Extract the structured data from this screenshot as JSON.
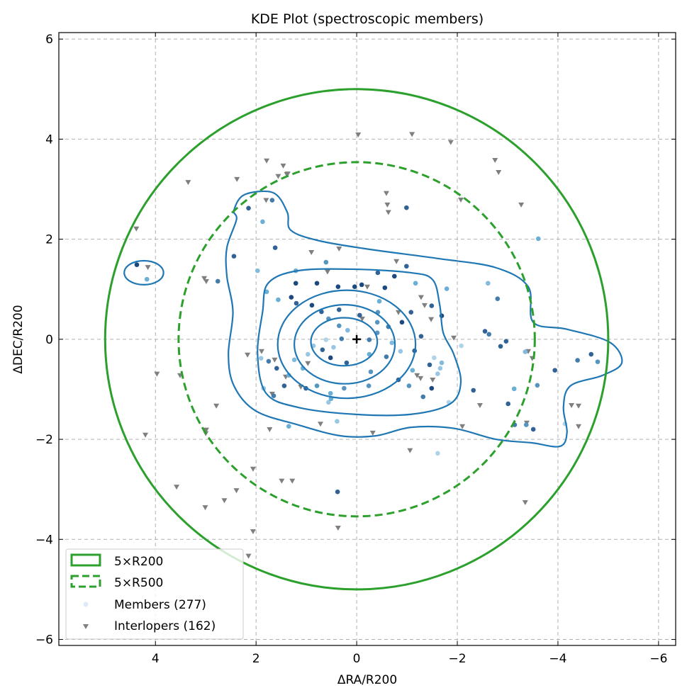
{
  "chart_data": {
    "type": "scatter",
    "title": "KDE Plot (spectroscopic members)",
    "xlabel": "ΔRA/R200",
    "ylabel": "ΔDEC/R200",
    "xlim": [
      5.92,
      -6.34
    ],
    "ylim": [
      -6.12,
      6.13
    ],
    "xticks": [
      4,
      2,
      0,
      -2,
      -4,
      -6
    ],
    "xtick_labels": [
      "4",
      "2",
      "0",
      "−2",
      "−4",
      "−6"
    ],
    "yticks": [
      -6,
      -4,
      -2,
      0,
      2,
      4,
      6
    ],
    "ytick_labels": [
      "−6",
      "−4",
      "−2",
      "0",
      "2",
      "4",
      "6"
    ],
    "grid": true,
    "legend_position": "bottom-left",
    "colors": {
      "circle": "#2ca02c",
      "contour": "#1f77b4",
      "interloper": "#7f7f7f",
      "blue_light": "#deebf7",
      "blue_mid": "#6baed6",
      "blue_dark": "#08306b"
    },
    "circles": [
      {
        "label": "5×R200",
        "radius": 5.0,
        "style": "solid"
      },
      {
        "label": "5×R500",
        "radius": 3.54,
        "style": "dashed"
      }
    ],
    "legend": [
      {
        "label": "5×R200",
        "kind": "solid-patch"
      },
      {
        "label": "5×R500",
        "kind": "dashed-patch"
      },
      {
        "label": "Members (277)",
        "kind": "dot"
      },
      {
        "label": "Interlopers (162)",
        "kind": "triangle"
      }
    ],
    "center_marker": [
      0,
      0
    ],
    "contours": {
      "ellipses": [
        {
          "cx": 0.25,
          "cy": -0.05,
          "rx": 0.66,
          "ry": 0.48
        },
        {
          "cx": 0.24,
          "cy": -0.1,
          "rx": 1.0,
          "ry": 0.79
        },
        {
          "cx": 0.2,
          "cy": -0.1,
          "rx": 1.37,
          "ry": 1.08
        },
        {
          "cx": 4.23,
          "cy": 1.33,
          "rx": 0.39,
          "ry": 0.24
        }
      ],
      "paths": [
        [
          [
            1.76,
            1.12
          ],
          [
            1.17,
            1.37
          ],
          [
            0.04,
            1.4
          ],
          [
            -1.08,
            1.33
          ],
          [
            -1.51,
            1.19
          ],
          [
            -1.65,
            0.69
          ],
          [
            -1.72,
            0.13
          ],
          [
            -1.93,
            -0.3
          ],
          [
            -2.07,
            -0.86
          ],
          [
            -1.86,
            -1.29
          ],
          [
            -1.08,
            -1.5
          ],
          [
            0.04,
            -1.5
          ],
          [
            1.17,
            -1.36
          ],
          [
            1.8,
            -1.08
          ],
          [
            1.97,
            -0.3
          ],
          [
            1.87,
            0.55
          ]
        ],
        [
          [
            2.44,
            2.58
          ],
          [
            2.23,
            2.89
          ],
          [
            1.66,
            2.93
          ],
          [
            1.38,
            2.54
          ],
          [
            1.31,
            2.18
          ],
          [
            0.75,
            1.97
          ],
          [
            -0.24,
            1.8
          ],
          [
            -1.65,
            1.61
          ],
          [
            -2.77,
            1.43
          ],
          [
            -3.41,
            1.05
          ],
          [
            -3.51,
            0.34
          ],
          [
            -4.18,
            0.2
          ],
          [
            -5.03,
            -0.06
          ],
          [
            -5.27,
            -0.47
          ],
          [
            -4.89,
            -0.72
          ],
          [
            -4.25,
            -0.93
          ],
          [
            -4.11,
            -1.36
          ],
          [
            -4.18,
            -1.86
          ],
          [
            -4.04,
            -2.14
          ],
          [
            -3.48,
            -2.07
          ],
          [
            -2.77,
            -2.0
          ],
          [
            -1.93,
            -1.78
          ],
          [
            -1.08,
            -1.76
          ],
          [
            -0.38,
            -1.93
          ],
          [
            0.32,
            -1.93
          ],
          [
            1.17,
            -1.71
          ],
          [
            2.01,
            -1.43
          ],
          [
            2.44,
            -0.93
          ],
          [
            2.55,
            -0.3
          ],
          [
            2.46,
            0.55
          ],
          [
            2.58,
            1.26
          ],
          [
            2.58,
            1.83
          ],
          [
            2.39,
            2.39
          ]
        ]
      ]
    },
    "members": [
      [
        4.37,
        1.49,
        0.9
      ],
      [
        4.17,
        1.2,
        0.5
      ],
      [
        2.15,
        2.62,
        0.8
      ],
      [
        1.68,
        2.78,
        0.7
      ],
      [
        1.87,
        2.35,
        0.5
      ],
      [
        1.62,
        1.83,
        0.8
      ],
      [
        2.44,
        1.66,
        0.8
      ],
      [
        2.76,
        1.16,
        0.7
      ],
      [
        1.97,
        1.37,
        0.4
      ],
      [
        -0.99,
        2.63,
        0.8
      ],
      [
        -3.61,
        2.01,
        0.5
      ],
      [
        -2.61,
        1.12,
        0.4
      ],
      [
        -2.8,
        0.81,
        0.7
      ],
      [
        -2.55,
        0.16,
        0.8
      ],
      [
        -2.63,
        0.1,
        0.7
      ],
      [
        -2.97,
        -0.04,
        0.8
      ],
      [
        -2.86,
        -0.14,
        0.8
      ],
      [
        -3.35,
        -0.25,
        0.4
      ],
      [
        -3.94,
        -0.62,
        0.8
      ],
      [
        -4.39,
        -0.42,
        0.7
      ],
      [
        -4.66,
        -0.3,
        0.8
      ],
      [
        -4.79,
        -0.45,
        0.6
      ],
      [
        -3.59,
        -0.92,
        0.6
      ],
      [
        -2.32,
        -1.02,
        0.8
      ],
      [
        -3.01,
        -1.29,
        0.8
      ],
      [
        -3.13,
        -0.99,
        0.5
      ],
      [
        -3.14,
        -1.71,
        0.7
      ],
      [
        -3.37,
        -1.71,
        0.6
      ],
      [
        -3.51,
        -1.8,
        0.8
      ],
      [
        -4.14,
        -1.69,
        0.2
      ],
      [
        -2.08,
        -0.13,
        0.2
      ],
      [
        -1.61,
        -2.28,
        0.2
      ],
      [
        0.38,
        -3.05,
        0.8
      ],
      [
        1.35,
        -1.74,
        0.5
      ],
      [
        0.39,
        -1.64,
        0.3
      ],
      [
        -1.83,
        -1.26,
        0.2
      ],
      [
        -1.79,
        1.01,
        0.5
      ],
      [
        -1.17,
        1.12,
        0.5
      ],
      [
        -0.99,
        1.46,
        0.8
      ],
      [
        -0.75,
        1.26,
        0.9
      ],
      [
        -0.42,
        1.33,
        0.8
      ],
      [
        -0.56,
        1.03,
        0.9
      ],
      [
        0.61,
        1.54,
        0.6
      ],
      [
        1.21,
        1.37,
        0.5
      ],
      [
        1.21,
        1.12,
        0.9
      ],
      [
        0.79,
        1.12,
        0.9
      ],
      [
        0.37,
        1.05,
        0.9
      ],
      [
        0.04,
        1.05,
        0.9
      ],
      [
        -0.1,
        1.09,
        0.9
      ],
      [
        1.79,
        0.95,
        0.5
      ],
      [
        1.56,
        0.79,
        0.5
      ],
      [
        1.3,
        0.84,
        0.9
      ],
      [
        1.2,
        0.72,
        0.8
      ],
      [
        0.89,
        0.68,
        0.9
      ],
      [
        0.7,
        0.55,
        0.8
      ],
      [
        0.35,
        0.59,
        0.8
      ],
      [
        0.56,
        0.41,
        0.6
      ],
      [
        -0.06,
        0.48,
        0.8
      ],
      [
        -0.41,
        0.34,
        0.6
      ],
      [
        -0.41,
        0.13,
        0.6
      ],
      [
        -0.25,
        -0.01,
        0.7
      ],
      [
        0.35,
        0.27,
        0.6
      ],
      [
        0.18,
        0.18,
        0.4
      ],
      [
        0.3,
        0.01,
        0.7
      ],
      [
        0.46,
        -0.16,
        0.3
      ],
      [
        0.61,
        -0.01,
        0.2
      ],
      [
        0.68,
        -0.21,
        0.8
      ],
      [
        0.52,
        -0.37,
        0.9
      ],
      [
        0.2,
        -0.47,
        0.8
      ],
      [
        -0.25,
        -0.3,
        0.5
      ],
      [
        -0.59,
        -0.35,
        0.7
      ],
      [
        -0.7,
        -0.07,
        0.4
      ],
      [
        -0.9,
        0.34,
        0.9
      ],
      [
        -0.87,
        -0.24,
        0.3
      ],
      [
        -1.15,
        -0.23,
        0.8
      ],
      [
        -1.28,
        0.06,
        0.8
      ],
      [
        -1.08,
        0.54,
        0.8
      ],
      [
        -1.49,
        0.67,
        0.8
      ],
      [
        -1.69,
        0.47,
        0.9
      ],
      [
        -1.11,
        -0.62,
        0.5
      ],
      [
        -1.04,
        -0.93,
        0.6
      ],
      [
        -0.83,
        -0.81,
        0.8
      ],
      [
        -0.28,
        -0.65,
        0.6
      ],
      [
        -0.24,
        -0.93,
        0.6
      ],
      [
        0.25,
        -0.98,
        0.6
      ],
      [
        0.52,
        -1.08,
        0.5
      ],
      [
        0.79,
        -0.93,
        0.6
      ],
      [
        1.01,
        -0.98,
        0.8
      ],
      [
        1.35,
        -0.72,
        0.5
      ],
      [
        1.59,
        -0.58,
        0.8
      ],
      [
        1.75,
        -0.44,
        0.7
      ],
      [
        1.9,
        -0.38,
        0.3
      ],
      [
        1.85,
        -0.98,
        0.3
      ],
      [
        1.65,
        -1.13,
        0.7
      ],
      [
        1.44,
        -0.93,
        0.8
      ],
      [
        1.07,
        -0.58,
        0.5
      ],
      [
        1.24,
        -0.41,
        0.4
      ],
      [
        0.97,
        -0.3,
        0.3
      ],
      [
        0.86,
        -0.13,
        0.3
      ],
      [
        -0.45,
        0.76,
        0.5
      ],
      [
        -0.42,
        0.54,
        0.6
      ],
      [
        -0.63,
        0.25,
        0.7
      ],
      [
        -1.32,
        -1.15,
        0.7
      ],
      [
        -1.49,
        -0.98,
        0.9
      ],
      [
        -1.61,
        -0.69,
        0.3
      ],
      [
        -1.66,
        -0.58,
        0.3
      ],
      [
        -1.69,
        -0.47,
        0.4
      ],
      [
        -1.45,
        -0.51,
        0.8
      ],
      [
        -1.54,
        -0.37,
        0.2
      ],
      [
        0.56,
        -1.26,
        0.3
      ],
      [
        0.51,
        -1.19,
        0.5
      ]
    ],
    "interlopers": [
      [
        -0.03,
        4.09
      ],
      [
        -1.1,
        4.1
      ],
      [
        -1.87,
        3.94
      ],
      [
        -2.75,
        3.58
      ],
      [
        -2.82,
        3.34
      ],
      [
        -3.27,
        2.69
      ],
      [
        1.79,
        3.57
      ],
      [
        1.46,
        3.47
      ],
      [
        1.56,
        3.26
      ],
      [
        1.37,
        3.31
      ],
      [
        2.38,
        3.2
      ],
      [
        3.35,
        3.14
      ],
      [
        4.38,
        2.21
      ],
      [
        4.15,
        1.44
      ],
      [
        3.03,
        1.22
      ],
      [
        2.99,
        1.16
      ],
      [
        3.97,
        -0.69
      ],
      [
        3.51,
        -0.72
      ],
      [
        4.2,
        -1.91
      ],
      [
        2.79,
        -1.33
      ],
      [
        2.99,
        -1.81
      ],
      [
        3.0,
        -1.88
      ],
      [
        3.58,
        -2.95
      ],
      [
        3.01,
        -3.36
      ],
      [
        2.63,
        -3.22
      ],
      [
        2.39,
        -3.02
      ],
      [
        2.06,
        -2.59
      ],
      [
        2.06,
        -3.84
      ],
      [
        2.15,
        -4.33
      ],
      [
        1.49,
        -2.83
      ],
      [
        1.28,
        -2.83
      ],
      [
        0.37,
        -3.77
      ],
      [
        -3.35,
        -3.26
      ],
      [
        -3.38,
        -1.67
      ],
      [
        -2.45,
        -1.32
      ],
      [
        -2.1,
        -1.74
      ],
      [
        -1.06,
        -2.22
      ],
      [
        -4.41,
        -1.33
      ],
      [
        -4.27,
        -1.32
      ],
      [
        -4.41,
        -1.74
      ],
      [
        -3.49,
        -0.38
      ],
      [
        -3.41,
        -0.24
      ],
      [
        -2.07,
        2.79
      ],
      [
        -0.59,
        2.92
      ],
      [
        -0.61,
        2.69
      ],
      [
        -0.63,
        2.54
      ],
      [
        -0.79,
        1.56
      ],
      [
        0.9,
        1.74
      ],
      [
        0.35,
        1.81
      ],
      [
        1.8,
        2.78
      ],
      [
        1.39,
        3.3
      ],
      [
        2.17,
        -0.31
      ],
      [
        1.89,
        -0.24
      ],
      [
        1.63,
        -0.41
      ],
      [
        1.68,
        -1.09
      ],
      [
        1.41,
        -0.75
      ],
      [
        1.73,
        -1.8
      ],
      [
        0.97,
        -0.48
      ],
      [
        1.11,
        -0.95
      ],
      [
        -0.83,
        0.54
      ],
      [
        -1.28,
        0.84
      ],
      [
        -1.35,
        0.68
      ],
      [
        -1.48,
        0.4
      ],
      [
        -1.2,
        -0.72
      ],
      [
        -1.27,
        -0.78
      ],
      [
        -1.51,
        -0.81
      ],
      [
        -0.32,
        -1.87
      ],
      [
        0.72,
        -1.69
      ],
      [
        0.58,
        1.35
      ],
      [
        -0.21,
        1.05
      ],
      [
        -0.11,
        0.41
      ],
      [
        -1.93,
        0.03
      ]
    ]
  }
}
